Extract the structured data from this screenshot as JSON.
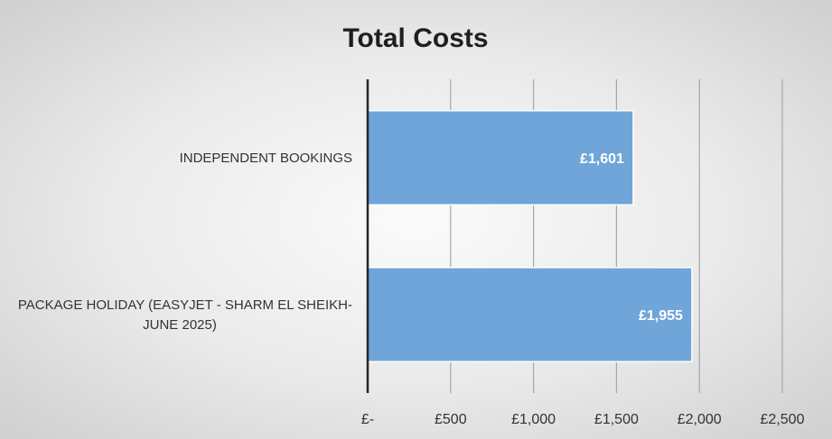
{
  "chart_data": {
    "type": "bar",
    "orientation": "horizontal",
    "title": "Total Costs",
    "categories": [
      [
        "INDEPENDENT BOOKINGS"
      ],
      [
        "PACKAGE HOLIDAY (EASYJET - SHARM EL SHEIKH-",
        "JUNE 2025)"
      ]
    ],
    "values": [
      1601,
      1955
    ],
    "data_labels": [
      "£1,601",
      "£1,955"
    ],
    "xlim": [
      0,
      2500
    ],
    "x_ticks": [
      0,
      500,
      1000,
      1500,
      2000,
      2500
    ],
    "x_tick_labels": [
      "£-",
      "£500",
      "£1,000",
      "£1,500",
      "£2,000",
      "£2,500"
    ],
    "xlabel": "",
    "ylabel": "",
    "grid": true,
    "legend": "none",
    "bar_color": "#6fa5d8",
    "bar_border_color": "#ffffff",
    "axis_color": "#262626",
    "grid_color": "#a6a6a6"
  }
}
